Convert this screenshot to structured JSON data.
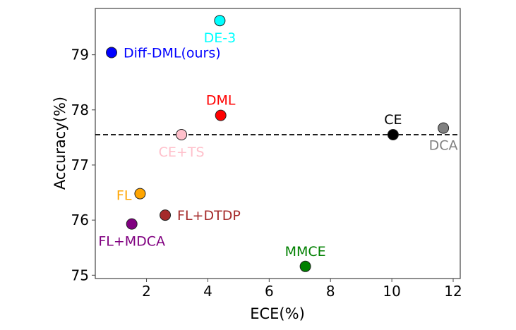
{
  "chart_data": {
    "type": "scatter",
    "title": "",
    "xlabel": "ECE(%)",
    "ylabel": "Accuracy(%)",
    "xlim": [
      0.33,
      12.23
    ],
    "ylim": [
      74.94,
      79.84
    ],
    "xticks": [
      2,
      4,
      6,
      8,
      10,
      12
    ],
    "yticks": [
      75,
      76,
      77,
      78,
      79
    ],
    "grid": false,
    "reference_line": {
      "y": 77.55,
      "style": "dashed",
      "color": "#000000"
    },
    "points": [
      {
        "label": "Diff-DML(ours)",
        "x": 0.86,
        "y": 79.04,
        "color": "#0000ff",
        "label_pos": "right"
      },
      {
        "label": "DE-3",
        "x": 4.39,
        "y": 79.62,
        "color": "#00ffff",
        "label_pos": "below"
      },
      {
        "label": "DML",
        "x": 4.42,
        "y": 77.9,
        "color": "#ff0000",
        "label_pos": "above"
      },
      {
        "label": "CE+TS",
        "x": 3.14,
        "y": 77.55,
        "color": "#ffc0cb",
        "label_pos": "below"
      },
      {
        "label": "CE",
        "x": 10.04,
        "y": 77.55,
        "color": "#000000",
        "label_pos": "above"
      },
      {
        "label": "DCA",
        "x": 11.68,
        "y": 77.67,
        "color": "#808080",
        "label_pos": "below"
      },
      {
        "label": "FL",
        "x": 1.79,
        "y": 76.48,
        "color": "#ffa500",
        "label_pos": "left"
      },
      {
        "label": "FL+DTDP",
        "x": 2.61,
        "y": 76.09,
        "color": "#a52a2a",
        "label_pos": "right"
      },
      {
        "label": "FL+MDCA",
        "x": 1.52,
        "y": 75.93,
        "color": "#800080",
        "label_pos": "below"
      },
      {
        "label": "MMCE",
        "x": 7.18,
        "y": 75.16,
        "color": "#008000",
        "label_pos": "above"
      }
    ]
  }
}
